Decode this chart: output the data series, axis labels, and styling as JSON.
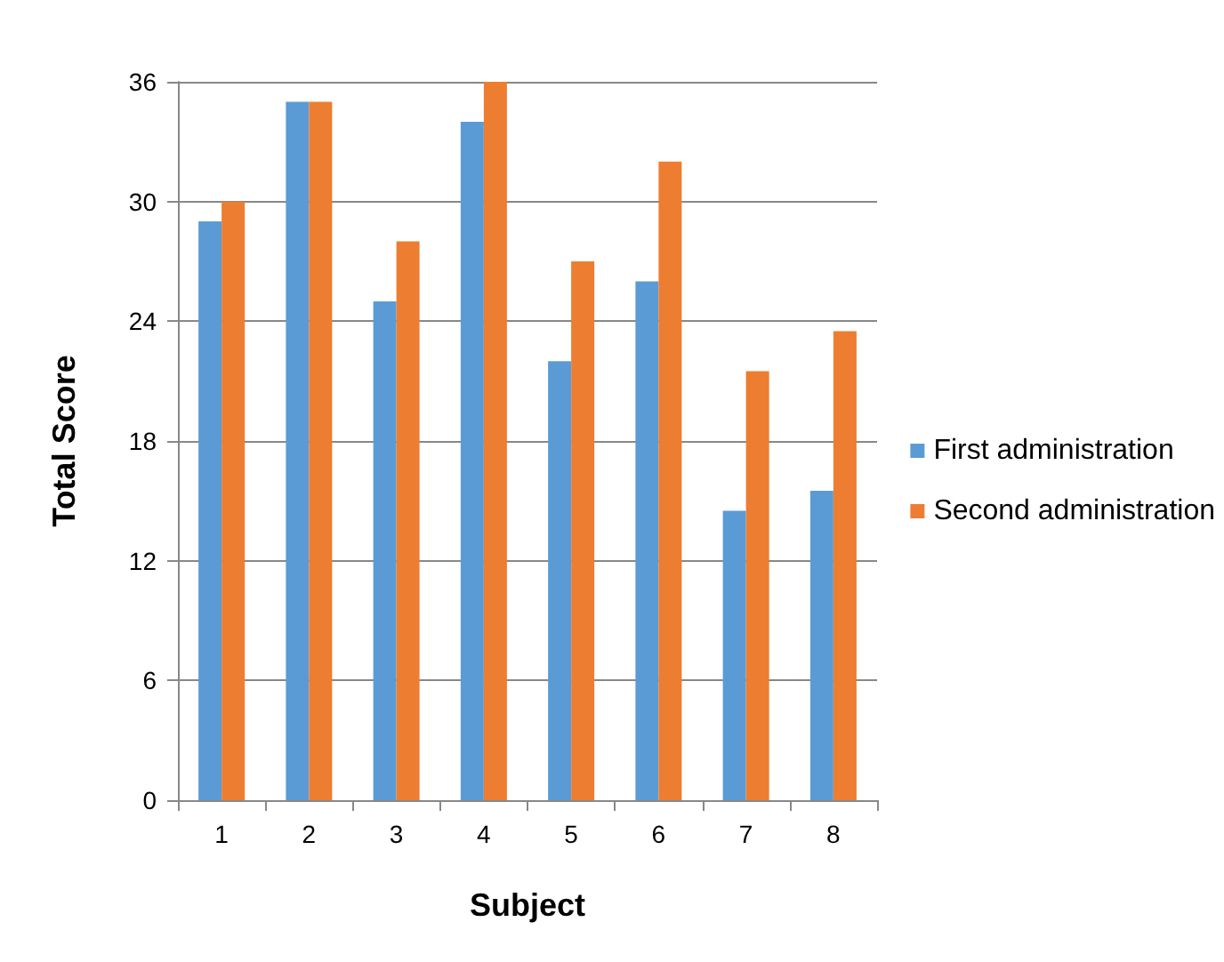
{
  "chart_data": {
    "type": "bar",
    "xlabel": "Subject",
    "ylabel": "Total Score",
    "categories": [
      "1",
      "2",
      "3",
      "4",
      "5",
      "6",
      "7",
      "8"
    ],
    "series": [
      {
        "name": "First administration",
        "color": "#5b9bd5",
        "values": [
          29,
          35,
          25,
          34,
          22,
          26,
          14.5,
          15.5
        ]
      },
      {
        "name": "Second administration",
        "color": "#ed7d31",
        "values": [
          30,
          35,
          28,
          36,
          27,
          32,
          21.5,
          23.5
        ]
      }
    ],
    "ylim": [
      0,
      36
    ],
    "yticks": [
      0,
      6,
      12,
      18,
      24,
      30,
      36
    ],
    "grid": "y",
    "legend": "right"
  }
}
